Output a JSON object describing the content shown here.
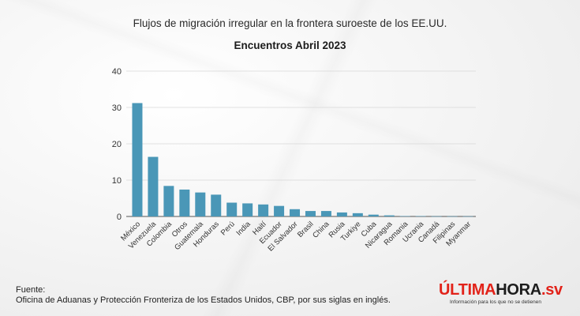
{
  "header": {
    "title": "Flujos de migración irregular en la frontera suroeste de los EE.UU.",
    "subtitle": "Encuentros Abril 2023"
  },
  "footer": {
    "source_label": "Fuente:",
    "source_text": "Oficina de Aduanas y Protección Fronteriza de los Estados Unidos, CBP, por sus siglas en inglés."
  },
  "brand": {
    "name_red": "ÚLTIMA",
    "name_dark": "HORA",
    "name_suffix": ".sv",
    "tagline": "Información para los que no se detienen"
  },
  "colors": {
    "bar": "#4a97b7",
    "grid": "#d7d7d7",
    "axis": "#555555",
    "accent": "#e2231a"
  },
  "chart_data": {
    "type": "bar",
    "title": "",
    "xlabel": "",
    "ylabel": "",
    "ylim": [
      0,
      40
    ],
    "yticks": [
      0,
      10,
      20,
      30,
      40
    ],
    "grid": true,
    "categories": [
      "México",
      "Venezuela",
      "Colombia",
      "Otros",
      "Guatemala",
      "Honduras",
      "Perú",
      "India",
      "Haití",
      "Ecuador",
      "El Salvador",
      "Brasil",
      "China",
      "Rusia",
      "Turkiye",
      "Cuba",
      "Nicaragua",
      "Romania",
      "Ucrania",
      "Canadá",
      "Filipinas",
      "Myanmar"
    ],
    "values": [
      31.2,
      16.4,
      8.4,
      7.4,
      6.6,
      6.0,
      3.8,
      3.6,
      3.3,
      2.9,
      2.0,
      1.5,
      1.5,
      1.1,
      0.9,
      0.5,
      0.3,
      0.1,
      0.1,
      0.05,
      0.05,
      0.05
    ]
  }
}
